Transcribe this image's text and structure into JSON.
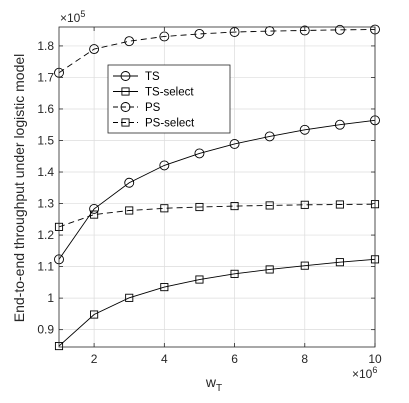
{
  "chart_data": {
    "type": "line",
    "title": "",
    "xlabel": "w",
    "xlabel_sub": "T",
    "ylabel": "End-to-end throughput under logistic model",
    "x_multiplier_base": "×10",
    "x_multiplier_exp": "6",
    "y_multiplier_base": "×10",
    "y_multiplier_exp": "5",
    "x": [
      1,
      2,
      3,
      4,
      5,
      6,
      7,
      8,
      9,
      10
    ],
    "xlim": [
      1,
      10
    ],
    "ylim": [
      0.845,
      1.86
    ],
    "x_ticks": [
      2,
      4,
      6,
      8,
      10
    ],
    "x_tick_labels": [
      "2",
      "4",
      "6",
      "8",
      "10"
    ],
    "y_ticks": [
      0.9,
      1.0,
      1.1,
      1.2,
      1.3,
      1.4,
      1.5,
      1.6,
      1.7,
      1.8
    ],
    "y_tick_labels": [
      "0.9",
      "1",
      "1.1",
      "1.2",
      "1.3",
      "1.4",
      "1.5",
      "1.6",
      "1.7",
      "1.8"
    ],
    "grid": true,
    "legend_position": "upper-left-inside",
    "series": [
      {
        "name": "TS",
        "marker": "circle",
        "dash": "solid",
        "values": [
          1.123,
          1.283,
          1.366,
          1.421,
          1.459,
          1.489,
          1.513,
          1.534,
          1.55,
          1.564
        ]
      },
      {
        "name": "TS-select",
        "marker": "square",
        "dash": "solid",
        "values": [
          0.848,
          0.948,
          1.001,
          1.035,
          1.059,
          1.077,
          1.091,
          1.103,
          1.114,
          1.123
        ]
      },
      {
        "name": "PS",
        "marker": "circle",
        "dash": "dashed",
        "values": [
          1.715,
          1.79,
          1.815,
          1.83,
          1.838,
          1.844,
          1.847,
          1.849,
          1.851,
          1.852
        ]
      },
      {
        "name": "PS-select",
        "marker": "square",
        "dash": "dashed",
        "values": [
          1.226,
          1.265,
          1.278,
          1.285,
          1.289,
          1.292,
          1.294,
          1.296,
          1.297,
          1.298
        ]
      }
    ]
  }
}
